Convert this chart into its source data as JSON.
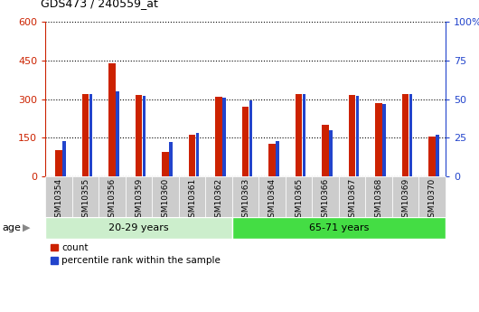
{
  "title": "GDS473 / 240559_at",
  "samples": [
    "GSM10354",
    "GSM10355",
    "GSM10356",
    "GSM10359",
    "GSM10360",
    "GSM10361",
    "GSM10362",
    "GSM10363",
    "GSM10364",
    "GSM10365",
    "GSM10366",
    "GSM10367",
    "GSM10368",
    "GSM10369",
    "GSM10370"
  ],
  "counts": [
    100,
    320,
    440,
    315,
    95,
    160,
    310,
    270,
    125,
    320,
    200,
    315,
    285,
    320,
    155
  ],
  "percentile_ranks": [
    23,
    53,
    55,
    52,
    22,
    28,
    51,
    49,
    23,
    53,
    30,
    52,
    47,
    53,
    27
  ],
  "groups": [
    {
      "label": "20-29 years",
      "start": 0,
      "end": 7,
      "color": "#cceecc"
    },
    {
      "label": "65-71 years",
      "start": 7,
      "end": 15,
      "color": "#44dd44"
    }
  ],
  "age_label": "age",
  "ylim_left": [
    0,
    600
  ],
  "ylim_right": [
    0,
    100
  ],
  "yticks_left": [
    0,
    150,
    300,
    450,
    600
  ],
  "yticks_right": [
    0,
    25,
    50,
    75,
    100
  ],
  "bar_color_count": "#cc2200",
  "bar_color_pct": "#2244cc",
  "legend_count": "count",
  "legend_pct": "percentile rank within the sample",
  "plot_bg": "#ffffff",
  "fig_bg": "#ffffff",
  "xticklabel_bg": "#cccccc",
  "count_bar_width": 0.25,
  "pct_bar_width": 0.12
}
